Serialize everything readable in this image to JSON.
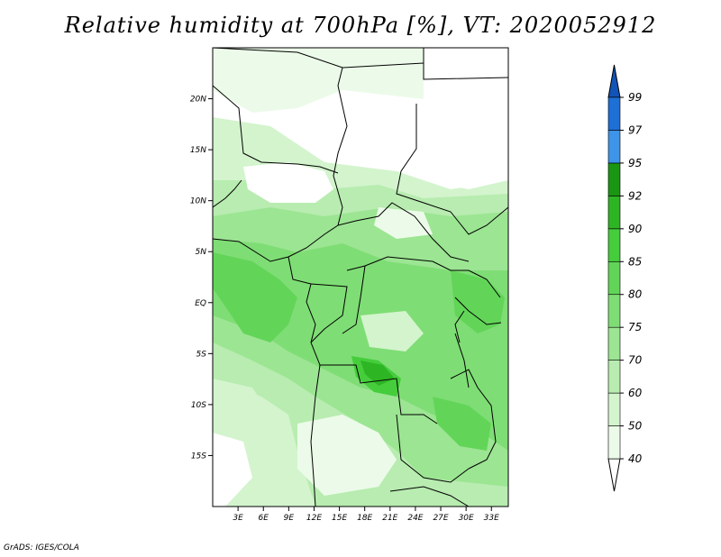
{
  "title": "Relative humidity at 700hPa [%], VT: 2020052912",
  "credit": "GrADS: IGES/COLA",
  "map": {
    "lat_labels": [
      "20N",
      "15N",
      "10N",
      "5N",
      "EQ",
      "5S",
      "10S",
      "15S"
    ],
    "lat_values": [
      20,
      15,
      10,
      5,
      0,
      -5,
      -10,
      -15
    ],
    "lon_labels": [
      "3E",
      "6E",
      "9E",
      "12E",
      "15E",
      "18E",
      "21E",
      "24E",
      "27E",
      "30E",
      "33E"
    ],
    "lon_values": [
      3,
      6,
      9,
      12,
      15,
      18,
      21,
      24,
      27,
      30,
      33
    ],
    "lon_range": [
      0,
      35
    ],
    "lat_range": [
      -20,
      25
    ]
  },
  "colorbar": {
    "levels": [
      "40",
      "50",
      "60",
      "70",
      "75",
      "80",
      "85",
      "90",
      "92",
      "95",
      "97",
      "99"
    ],
    "colors": [
      "#ffffff",
      "#ecfbe9",
      "#d3f4cd",
      "#b8ecb0",
      "#9ce593",
      "#7fdd75",
      "#62d558",
      "#45cd3b",
      "#2eb524",
      "#1b9612",
      "#3d94e8",
      "#1e6fd6",
      "#1253b8"
    ]
  }
}
